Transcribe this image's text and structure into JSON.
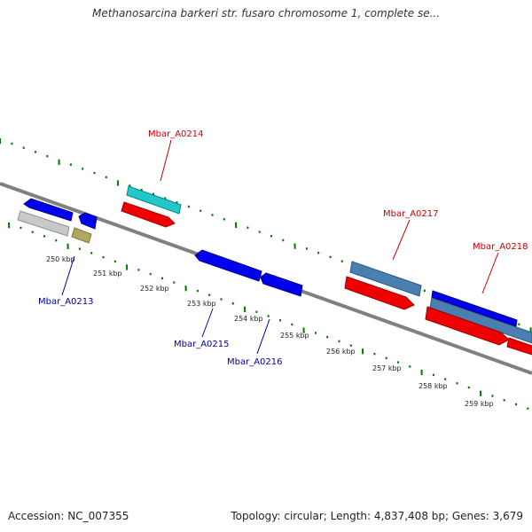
{
  "title": "Methanosarcina barkeri str. fusaro chromosome 1, complete se...",
  "footer": {
    "accession": "Accession: NC_007355",
    "summary": "Topology: circular; Length: 4,837,408 bp; Genes: 3,679"
  },
  "colors": {
    "backbone": "#808080",
    "tick": "#007700",
    "forward_label": "#cc0000",
    "reverse_label": "#0000aa",
    "gene_red": "#ee0000",
    "gene_blue": "#0000ee",
    "gene_cyan": "#20c8c8",
    "gene_steel": "#4a7fb0",
    "gene_gray": "#c8c8c8",
    "gene_olive": "#b0a860"
  },
  "scale": {
    "labels": [
      "250 kbp",
      "251 kbp",
      "252 kbp",
      "253 kbp",
      "254 kbp",
      "255 kbp",
      "256 kbp",
      "257 kbp",
      "258 kbp",
      "259 kbp"
    ]
  },
  "genes": [
    {
      "label": "Mbar_A0214",
      "side": "above"
    },
    {
      "label": "Mbar_A0217",
      "side": "above"
    },
    {
      "label": "Mbar_A0218",
      "side": "above"
    },
    {
      "label": "Mbar_A0213",
      "side": "below"
    },
    {
      "label": "Mbar_A0215",
      "side": "below"
    },
    {
      "label": "Mbar_A0216",
      "side": "below"
    }
  ]
}
